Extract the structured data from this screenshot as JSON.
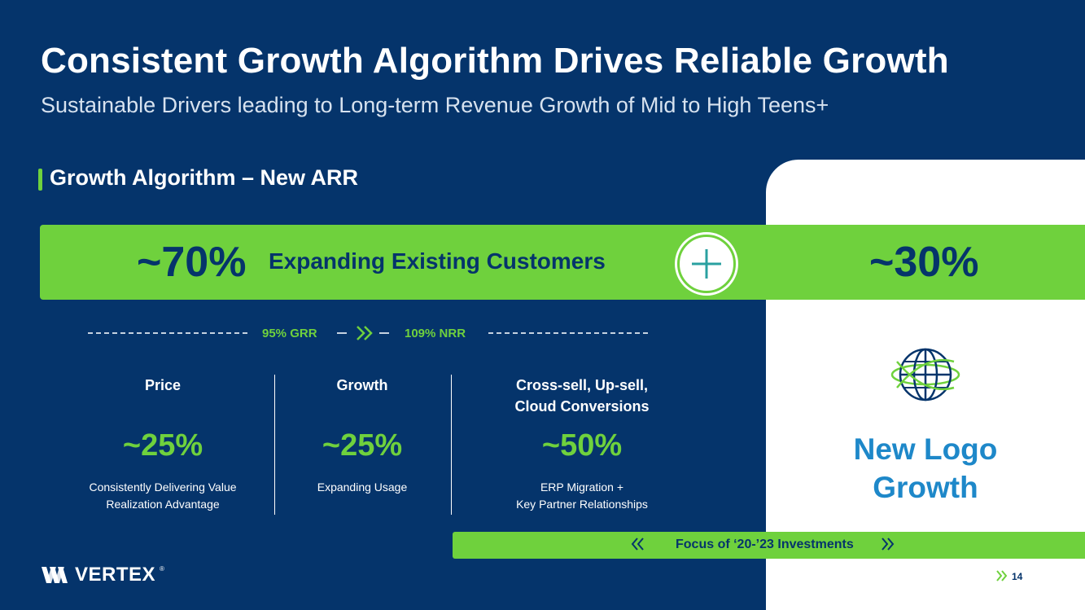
{
  "slide": {
    "title": "Consistent Growth Algorithm Drives Reliable Growth",
    "subtitle": "Sustainable Drivers leading to Long-term Revenue Growth of Mid to High Teens+",
    "section_title": "Growth Algorithm – New ARR",
    "page_number": "14"
  },
  "band": {
    "left_pct": "~70%",
    "left_label": "Expanding Existing Customers",
    "right_pct": "~30%"
  },
  "retention": {
    "grr": "95% GRR",
    "nrr": "109% NRR"
  },
  "columns": [
    {
      "heading": "Price",
      "pct": "~25%",
      "desc_line1": "Consistently Delivering Value",
      "desc_line2": "Realization Advantage"
    },
    {
      "heading": "Growth",
      "pct": "~25%",
      "desc_line1": "Expanding Usage",
      "desc_line2": ""
    },
    {
      "heading_line1": "Cross-sell, Up-sell,",
      "heading_line2": "Cloud Conversions",
      "pct": "~50%",
      "desc_line1": "ERP Migration +",
      "desc_line2": "Key Partner Relationships"
    }
  ],
  "new_logo": {
    "line1": "New Logo",
    "line2": "Growth",
    "icon": "globe-orbit-icon"
  },
  "focus_bar": {
    "text": "Focus of ‘20-’23 Investments"
  },
  "brand": {
    "logo_text": "VERTEX",
    "registered": "®"
  },
  "colors": {
    "navy": "#05346b",
    "green": "#6fd13d",
    "blue": "#1e88c9",
    "white": "#ffffff"
  }
}
